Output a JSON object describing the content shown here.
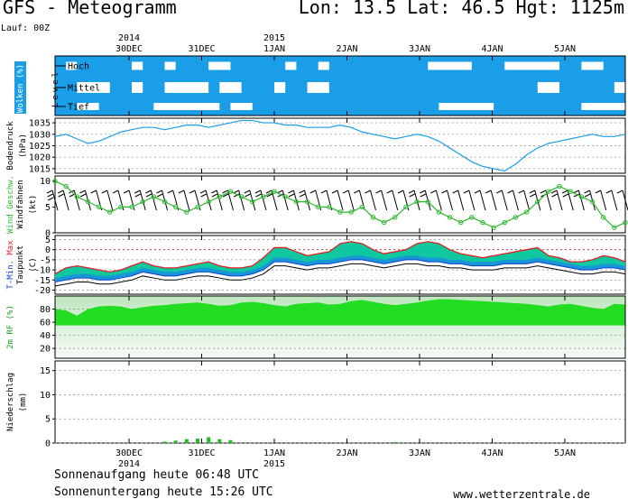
{
  "header": {
    "title": "GFS - Meteogramm",
    "location": "Lon: 13.5 Lat: 46.5 Hgt: 1125m",
    "run": "Lauf: 00Z"
  },
  "time_axis": {
    "days": [
      {
        "label": "30DEC",
        "year": "2014"
      },
      {
        "label": "31DEC",
        "year": ""
      },
      {
        "label": "1JAN",
        "year": "2015"
      },
      {
        "label": "2JAN",
        "year": ""
      },
      {
        "label": "3JAN",
        "year": ""
      },
      {
        "label": "4JAN",
        "year": ""
      },
      {
        "label": "5JAN",
        "year": ""
      }
    ],
    "hours_between_points": 6
  },
  "footer": {
    "sunrise": "Sonnenaufgang heute 06:48 UTC",
    "sunset": "Sonnenuntergang heute 15:26 UTC",
    "website": "www.wetterzentrale.de"
  },
  "colors": {
    "cloud_bg": "#1a9ee8",
    "cloud": "#ffffff",
    "pressure": "#1a9ee8",
    "wind": "#2fb82f",
    "wind_barb": "#000000",
    "temp_fill": "#10c8a0",
    "temp_band_blue": "#1a8ee0",
    "temp_max": "#e02020",
    "temp_min": "#1040d0",
    "dewpoint": "#000000",
    "humidity": "#22dd22",
    "precip": "#22bb22",
    "grid": "#888888"
  },
  "chart_data": [
    {
      "type": "heatmap",
      "panel": "clouds",
      "ylabel": "Wolken (%)",
      "levels": [
        "Hoch",
        "Mittel",
        "Tief"
      ],
      "level_axis_title": "Level",
      "x_step_hours": 6,
      "coverage_low_is_white": true,
      "clear_sky_runs": {
        "Hoch": [
          [
            1,
            2
          ],
          [
            7,
            8
          ],
          [
            10,
            11
          ],
          [
            14,
            16
          ],
          [
            21,
            22
          ],
          [
            24,
            25
          ],
          [
            34,
            38
          ],
          [
            41,
            46
          ],
          [
            48,
            50
          ],
          [
            55,
            57
          ]
        ],
        "Mittel": [
          [
            2,
            5
          ],
          [
            7,
            8
          ],
          [
            10,
            14
          ],
          [
            15,
            17
          ],
          [
            20,
            21
          ],
          [
            23,
            25
          ],
          [
            44,
            46
          ],
          [
            51,
            54
          ]
        ],
        "Tief": [
          [
            2,
            4
          ],
          [
            9,
            15
          ],
          [
            16,
            18
          ],
          [
            35,
            40
          ],
          [
            48,
            54
          ],
          [
            57,
            59
          ]
        ]
      }
    },
    {
      "type": "line",
      "panel": "pressure",
      "ylabel": "Bodendruck (hPa)",
      "ylim": [
        1013,
        1037
      ],
      "yticks": [
        1015,
        1020,
        1025,
        1030,
        1035
      ],
      "series": [
        {
          "name": "Bodendruck",
          "values": [
            1029,
            1030,
            1028,
            1026,
            1027,
            1029,
            1031,
            1032,
            1033,
            1033,
            1032,
            1033,
            1034,
            1034,
            1033,
            1034,
            1035,
            1036,
            1036,
            1035,
            1035,
            1034,
            1034,
            1033,
            1033,
            1033,
            1034,
            1033,
            1031,
            1030,
            1029,
            1028,
            1029,
            1030,
            1029,
            1027,
            1024,
            1021,
            1018,
            1016,
            1015,
            1014,
            1017,
            1021,
            1024,
            1026,
            1027,
            1028,
            1029,
            1030,
            1029,
            1029,
            1030
          ]
        }
      ]
    },
    {
      "type": "line",
      "panel": "wind",
      "ylabel": "Windfahnen (kt)",
      "series_label": "Wind Geschw.",
      "ylim": [
        0,
        11
      ],
      "yticks": [
        0,
        5,
        10
      ],
      "series": [
        {
          "name": "Wind Geschw.",
          "values": [
            10,
            9,
            7,
            6,
            5,
            4,
            5,
            5,
            6,
            7,
            6,
            5,
            4,
            5,
            6,
            7,
            8,
            7,
            6,
            7,
            8,
            7,
            6,
            6,
            5,
            5,
            4,
            4,
            5,
            3,
            2,
            3,
            5,
            6,
            6,
            4,
            3,
            2,
            3,
            2,
            1,
            2,
            3,
            4,
            6,
            8,
            9,
            8,
            7,
            6,
            3,
            1,
            2
          ]
        }
      ]
    },
    {
      "type": "area",
      "panel": "temperature",
      "ylabel": "Taupunkt (C)",
      "series_label": "T-Min. Max",
      "ylim": [
        -22,
        7
      ],
      "yticks": [
        -20,
        -15,
        -10,
        -5,
        0,
        5
      ],
      "series": [
        {
          "name": "Max",
          "values": [
            -12,
            -9,
            -8,
            -9,
            -10,
            -11,
            -10,
            -8,
            -6,
            -8,
            -9,
            -9,
            -8,
            -7,
            -6,
            -8,
            -9,
            -9,
            -8,
            -4,
            1,
            1,
            -1,
            -3,
            -2,
            -1,
            3,
            4,
            3,
            0,
            -2,
            -1,
            0,
            3,
            4,
            3,
            0,
            -2,
            -3,
            -4,
            -3,
            -2,
            -1,
            0,
            1,
            -3,
            -4,
            -6,
            -6,
            -5,
            -3,
            -4,
            -6
          ]
        },
        {
          "name": "Min",
          "values": [
            -16,
            -15,
            -14,
            -14,
            -15,
            -15,
            -14,
            -13,
            -11,
            -12,
            -13,
            -13,
            -12,
            -11,
            -11,
            -12,
            -13,
            -13,
            -12,
            -10,
            -6,
            -6,
            -7,
            -8,
            -7,
            -7,
            -6,
            -5,
            -5,
            -6,
            -7,
            -6,
            -5,
            -5,
            -6,
            -6,
            -7,
            -7,
            -8,
            -8,
            -8,
            -7,
            -7,
            -7,
            -6,
            -7,
            -8,
            -9,
            -10,
            -10,
            -9,
            -9,
            -10
          ]
        },
        {
          "name": "Taupunkt",
          "values": [
            -18,
            -17,
            -16,
            -16,
            -17,
            -17,
            -16,
            -15,
            -13,
            -14,
            -15,
            -15,
            -14,
            -13,
            -13,
            -14,
            -15,
            -15,
            -14,
            -12,
            -8,
            -8,
            -9,
            -10,
            -9,
            -9,
            -8,
            -7,
            -7,
            -8,
            -9,
            -8,
            -7,
            -7,
            -8,
            -8,
            -9,
            -9,
            -10,
            -10,
            -10,
            -9,
            -9,
            -9,
            -8,
            -9,
            -10,
            -11,
            -12,
            -12,
            -11,
            -11,
            -12
          ]
        }
      ]
    },
    {
      "type": "area",
      "panel": "humidity",
      "ylabel": "2m RF (%)",
      "ylim": [
        5,
        100
      ],
      "yticks": [
        20,
        40,
        60,
        80
      ],
      "series": [
        {
          "name": "2m RF",
          "values": [
            80,
            78,
            70,
            80,
            84,
            85,
            84,
            80,
            83,
            85,
            86,
            88,
            89,
            90,
            88,
            85,
            86,
            90,
            91,
            89,
            86,
            84,
            88,
            89,
            90,
            87,
            88,
            92,
            94,
            91,
            88,
            86,
            88,
            90,
            93,
            95,
            95,
            94,
            93,
            92,
            91,
            90,
            89,
            88,
            86,
            84,
            87,
            88,
            85,
            82,
            80,
            88,
            87
          ]
        }
      ]
    },
    {
      "type": "bar",
      "panel": "precipitation",
      "ylabel": "Niederschlag (mm)",
      "ylim": [
        0,
        17
      ],
      "yticks": [
        0,
        5,
        10,
        15
      ],
      "values": [
        0,
        0,
        0,
        0,
        0,
        0,
        0,
        0,
        0,
        0,
        0.3,
        0.5,
        0.8,
        0.9,
        1.2,
        0.8,
        0.6,
        0,
        0,
        0,
        0,
        0,
        0,
        0,
        0,
        0,
        0,
        0,
        0,
        0,
        0,
        0.2,
        0,
        0,
        0,
        0,
        0,
        0,
        0,
        0,
        0,
        0,
        0,
        0,
        0,
        0,
        0,
        0,
        0,
        0,
        0,
        0,
        0
      ]
    }
  ]
}
